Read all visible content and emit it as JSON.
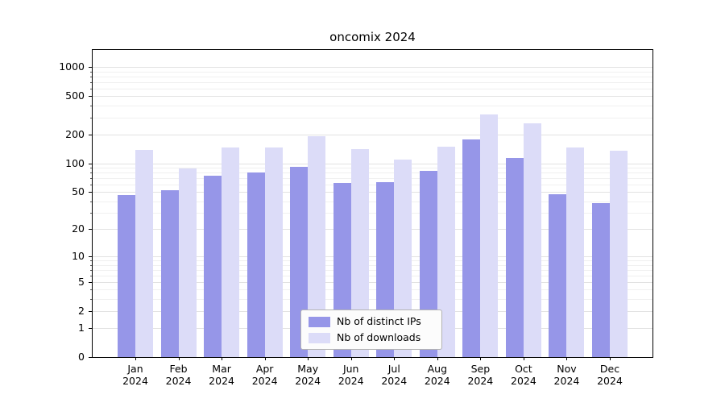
{
  "title": "oncomix 2024",
  "chart_data": {
    "type": "bar",
    "title": "oncomix 2024",
    "months": [
      "Jan",
      "Feb",
      "Mar",
      "Apr",
      "May",
      "Jun",
      "Jul",
      "Aug",
      "Sep",
      "Oct",
      "Nov",
      "Dec"
    ],
    "year_label": "2024",
    "series": [
      {
        "name": "Nb of distinct IPs",
        "color": "#9696e8",
        "values": [
          46,
          52,
          74,
          80,
          92,
          62,
          63,
          84,
          178,
          113,
          47,
          38
        ]
      },
      {
        "name": "Nb of downloads",
        "color": "#dcdcf8",
        "values": [
          139,
          88,
          145,
          147,
          190,
          140,
          110,
          150,
          320,
          260,
          147,
          135
        ]
      }
    ],
    "y_ticks": [
      0,
      1,
      2,
      5,
      10,
      20,
      50,
      100,
      200,
      500,
      1000
    ],
    "y_minor_ticks": [
      3,
      4,
      6,
      7,
      8,
      9,
      30,
      40,
      60,
      70,
      80,
      90,
      300,
      400,
      600,
      700,
      800,
      900
    ],
    "y_scale": "log10(1+v)",
    "ylim": [
      0,
      1500
    ],
    "xlabel": "",
    "ylabel": "",
    "grid": "horizontal",
    "legend_position": "lower center"
  }
}
